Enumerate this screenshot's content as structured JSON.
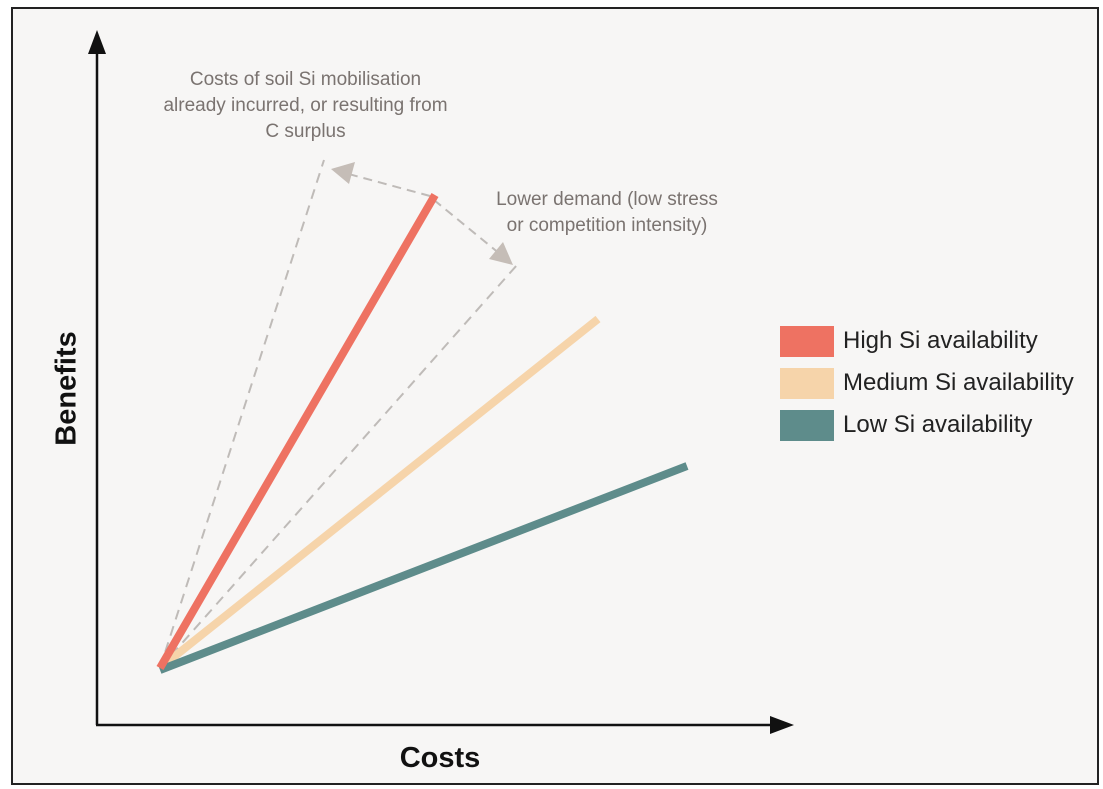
{
  "axes": {
    "x_label": "Costs",
    "y_label": "Benefits"
  },
  "annotations": {
    "costs_note": "Costs of soil Si mobilisation already incurred, or resulting from C surplus",
    "demand_note": "Lower demand (low stress or competition intensity)"
  },
  "legend": [
    {
      "label": "High Si availability",
      "color": "#ee7262"
    },
    {
      "label": "Medium Si availability",
      "color": "#f6d4aa"
    },
    {
      "label": "Low Si availability",
      "color": "#5e8c8b"
    }
  ],
  "colors": {
    "axis": "#111111",
    "dashed": "#bfbbb8",
    "arrow_head": "#c5bdb7",
    "background": "#f7f6f5"
  }
}
